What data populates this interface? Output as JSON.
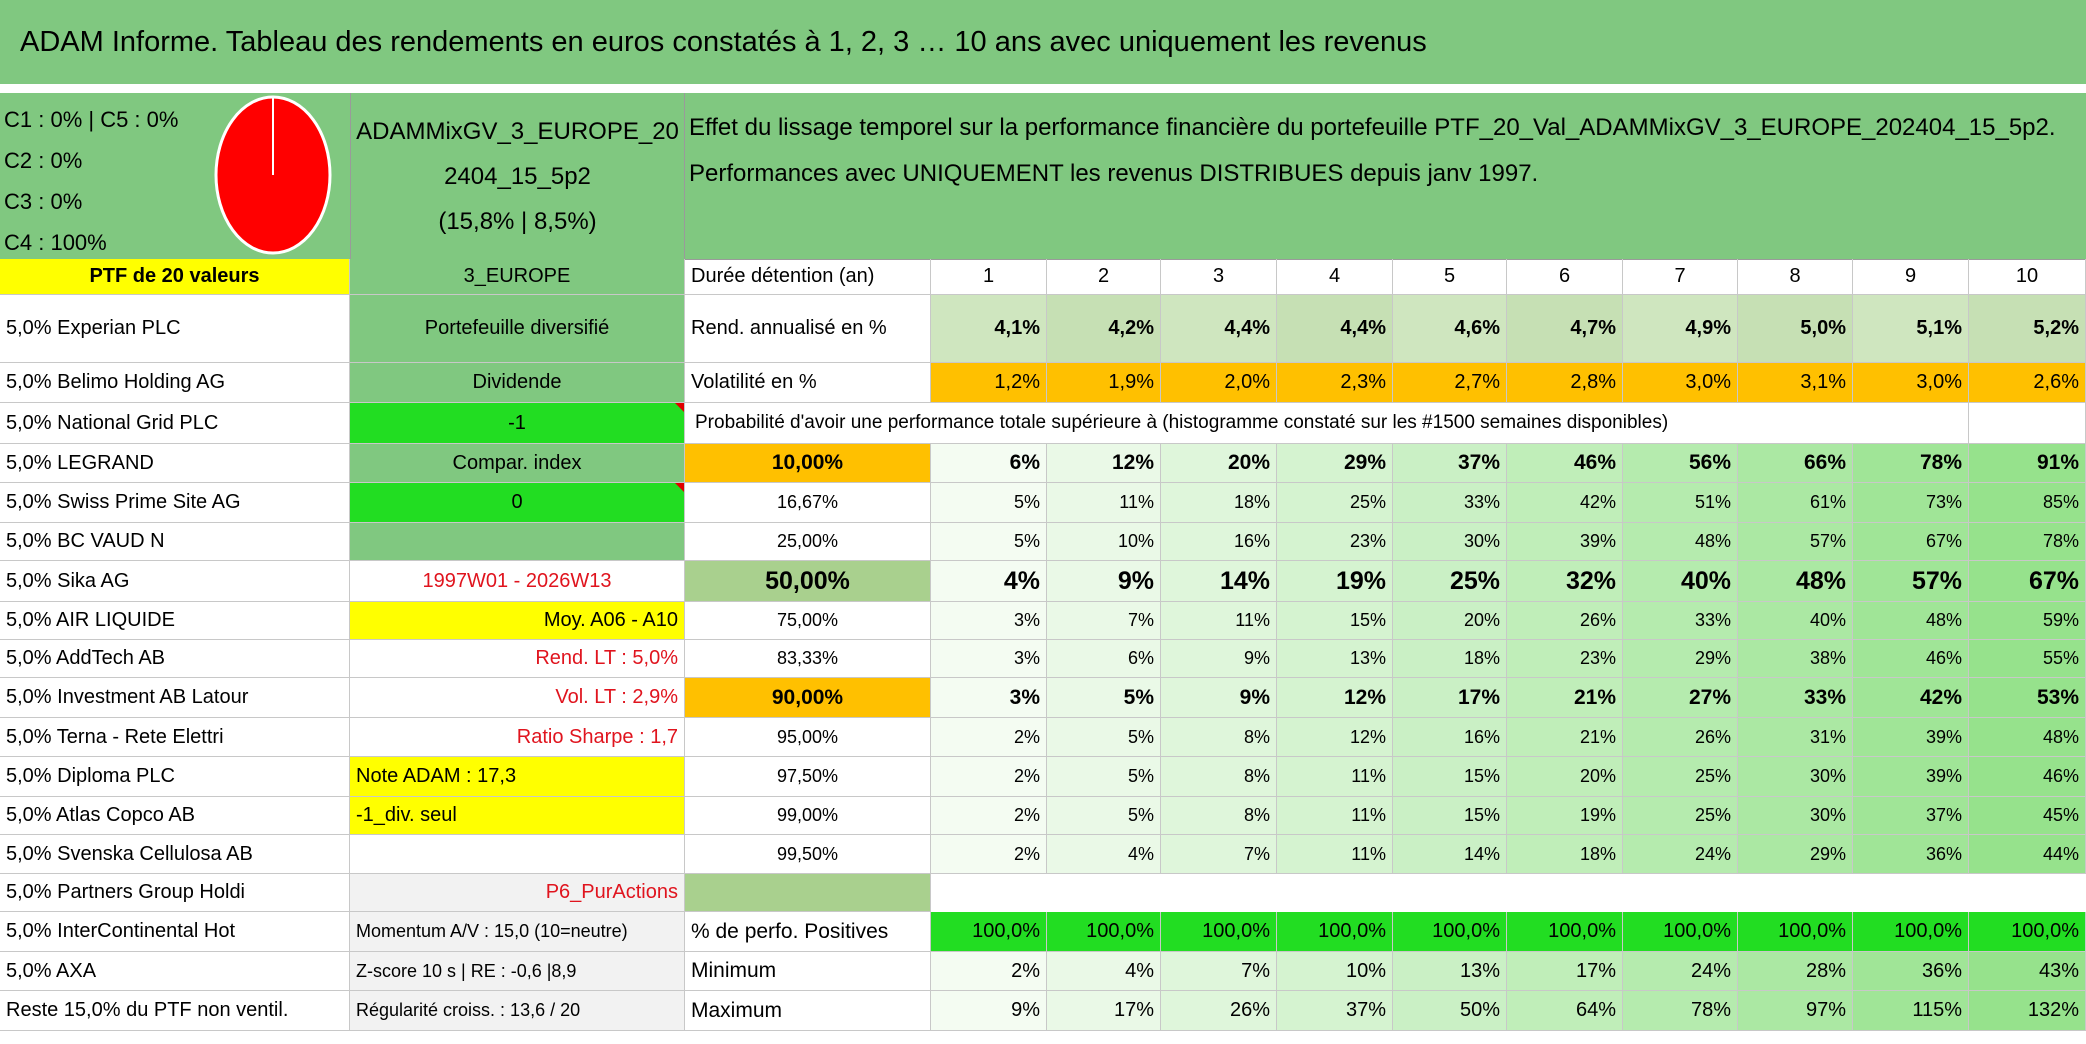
{
  "title": "ADAM Informe. Tableau des rendements en euros constatés à 1, 2, 3 … 10 ans avec uniquement les revenus",
  "pie_legend": [
    "C1 : 0% | C5 : 0%",
    "C2 : 0%",
    "C3 : 0%",
    "C4 : 100%"
  ],
  "portfolio": {
    "name": "ADAMMixGV_3_EUROPE_202404_15_5p2",
    "stats": "(15,8% | 8,5%)"
  },
  "description": "Effet du lissage temporel sur la performance financière du portefeuille PTF_20_Val_ADAMMixGV_3_EUROPE_202404_15_5p2. Performances avec UNIQUEMENT les revenus DISTRIBUES depuis janv 1997.",
  "holdings": [
    "PTF de 20 valeurs",
    "5,0% Experian PLC",
    "5,0% Belimo Holding AG",
    "5,0% National Grid PLC",
    "5,0% LEGRAND",
    "5,0% Swiss Prime Site AG",
    "5,0% BC VAUD N",
    "5,0% Sika AG",
    "5,0% AIR LIQUIDE",
    "5,0% AddTech AB",
    "5,0% Investment AB Latour",
    "5,0% Terna - Rete Elettri",
    "5,0% Diploma PLC",
    "5,0% Atlas Copco AB",
    "5,0% Svenska Cellulosa AB",
    "5,0% Partners Group Holdi",
    "5,0% InterContinental Hot",
    "5,0% AXA",
    "Reste 15,0% du PTF non ventil."
  ],
  "settings": [
    "3_EUROPE",
    "Portefeuille diversifié",
    "Dividende",
    "-1",
    "Compar. index",
    "0",
    null,
    "1997W01 - 2026W13",
    "Moy. A06 - A10",
    "Rend. LT : 5,0%",
    "Vol. LT : 2,9%",
    "Ratio Sharpe : 1,7",
    "Note ADAM : 17,3",
    "-1_div. seul",
    null,
    "P6_PurActions",
    "Momentum A/V : 15,0 (10=neutre)",
    "Z-score 10 s | RE : -0,6 |8,9",
    "Régularité croiss. : 13,6 / 20"
  ],
  "stats": {
    "header_label": "Durée détention (an)",
    "horizons": [
      1,
      2,
      3,
      4,
      5,
      6,
      7,
      8,
      9,
      10
    ],
    "rows": [
      {
        "label": "Rend. annualisé en %",
        "values": [
          "4,1%",
          "4,2%",
          "4,4%",
          "4,4%",
          "4,6%",
          "4,7%",
          "4,9%",
          "5,0%",
          "5,1%",
          "5,2%"
        ]
      },
      {
        "label": "Volatilité en %",
        "values": [
          "1,2%",
          "1,9%",
          "2,0%",
          "2,3%",
          "2,7%",
          "2,8%",
          "3,0%",
          "3,1%",
          "3,0%",
          "2,6%"
        ]
      }
    ]
  },
  "probability": {
    "heading": "Probabilité d'avoir une performance totale supérieure à (histogramme constaté sur les #1500 semaines disponibles)",
    "rows": [
      {
        "threshold": "10,00%",
        "values": [
          "6%",
          "12%",
          "20%",
          "29%",
          "37%",
          "46%",
          "56%",
          "66%",
          "78%",
          "91%"
        ]
      },
      {
        "threshold": "16,67%",
        "values": [
          "5%",
          "11%",
          "18%",
          "25%",
          "33%",
          "42%",
          "51%",
          "61%",
          "73%",
          "85%"
        ]
      },
      {
        "threshold": "25,00%",
        "values": [
          "5%",
          "10%",
          "16%",
          "23%",
          "30%",
          "39%",
          "48%",
          "57%",
          "67%",
          "78%"
        ]
      },
      {
        "threshold": "50,00%",
        "values": [
          "4%",
          "9%",
          "14%",
          "19%",
          "25%",
          "32%",
          "40%",
          "48%",
          "57%",
          "67%"
        ]
      },
      {
        "threshold": "75,00%",
        "values": [
          "3%",
          "7%",
          "11%",
          "15%",
          "20%",
          "26%",
          "33%",
          "40%",
          "48%",
          "59%"
        ]
      },
      {
        "threshold": "83,33%",
        "values": [
          "3%",
          "6%",
          "9%",
          "13%",
          "18%",
          "23%",
          "29%",
          "38%",
          "46%",
          "55%"
        ]
      },
      {
        "threshold": "90,00%",
        "values": [
          "3%",
          "5%",
          "9%",
          "12%",
          "17%",
          "21%",
          "27%",
          "33%",
          "42%",
          "53%"
        ]
      },
      {
        "threshold": "95,00%",
        "values": [
          "2%",
          "5%",
          "8%",
          "12%",
          "16%",
          "21%",
          "26%",
          "31%",
          "39%",
          "48%"
        ]
      },
      {
        "threshold": "97,50%",
        "values": [
          "2%",
          "5%",
          "8%",
          "11%",
          "15%",
          "20%",
          "25%",
          "30%",
          "39%",
          "46%"
        ]
      },
      {
        "threshold": "99,00%",
        "values": [
          "2%",
          "5%",
          "8%",
          "11%",
          "15%",
          "19%",
          "25%",
          "30%",
          "37%",
          "45%"
        ]
      },
      {
        "threshold": "99,50%",
        "values": [
          "2%",
          "4%",
          "7%",
          "11%",
          "14%",
          "18%",
          "24%",
          "29%",
          "36%",
          "44%"
        ]
      }
    ]
  },
  "summary": {
    "rows": [
      {
        "label": "% de perfo. Positives",
        "values": [
          "100,0%",
          "100,0%",
          "100,0%",
          "100,0%",
          "100,0%",
          "100,0%",
          "100,0%",
          "100,0%",
          "100,0%",
          "100,0%"
        ]
      },
      {
        "label": "Minimum",
        "values": [
          "2%",
          "4%",
          "7%",
          "10%",
          "13%",
          "17%",
          "24%",
          "28%",
          "36%",
          "43%"
        ]
      },
      {
        "label": "Maximum",
        "values": [
          "9%",
          "17%",
          "26%",
          "37%",
          "50%",
          "64%",
          "78%",
          "97%",
          "115%",
          "132%"
        ]
      }
    ]
  }
}
